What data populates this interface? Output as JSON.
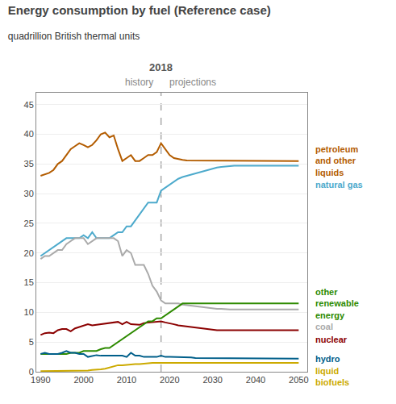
{
  "chart_data": {
    "type": "line",
    "title": "Energy consumption by fuel (Reference case)",
    "subtitle": "quadrillion British thermal units",
    "x": [
      1990,
      1991,
      1992,
      1993,
      1994,
      1995,
      1996,
      1997,
      1998,
      1999,
      2000,
      2001,
      2002,
      2003,
      2004,
      2005,
      2006,
      2007,
      2008,
      2009,
      2010,
      2011,
      2012,
      2013,
      2014,
      2015,
      2016,
      2017,
      2018,
      2019,
      2020,
      2021,
      2022,
      2023,
      2024,
      2025,
      2026,
      2027,
      2028,
      2029,
      2030,
      2031,
      2032,
      2033,
      2034,
      2035,
      2036,
      2037,
      2038,
      2039,
      2040,
      2041,
      2042,
      2043,
      2044,
      2045,
      2046,
      2047,
      2048,
      2049,
      2050
    ],
    "series": [
      {
        "name": "petroleum\nand other\nliquids",
        "color": "#b35c00",
        "values": [
          33.0,
          33.2,
          33.5,
          34.0,
          35.0,
          35.5,
          36.5,
          37.5,
          38.0,
          38.5,
          38.2,
          37.8,
          38.2,
          39.0,
          40.0,
          40.3,
          39.5,
          39.8,
          37.5,
          35.5,
          36.0,
          36.5,
          35.5,
          35.5,
          36.0,
          36.5,
          36.5,
          37.0,
          38.5,
          37.5,
          36.5,
          36.0,
          35.8,
          35.7,
          35.6,
          35.6,
          35.6,
          35.6,
          35.6,
          35.6,
          35.6,
          35.6,
          35.6,
          35.6,
          35.5,
          35.5,
          35.5,
          35.5,
          35.5,
          35.5,
          35.5,
          35.5,
          35.5,
          35.5,
          35.5,
          35.5,
          35.5,
          35.5,
          35.5,
          35.5,
          35.5
        ]
      },
      {
        "name": "natural gas",
        "color": "#4daacc",
        "values": [
          19.5,
          20.0,
          20.5,
          21.0,
          21.5,
          22.0,
          22.5,
          22.5,
          22.5,
          22.5,
          23.0,
          22.5,
          23.5,
          22.5,
          22.5,
          22.5,
          22.5,
          23.0,
          23.5,
          23.5,
          24.5,
          24.5,
          25.5,
          26.5,
          27.5,
          28.5,
          28.5,
          28.5,
          30.5,
          31.0,
          31.5,
          32.0,
          32.5,
          32.8,
          33.0,
          33.3,
          33.5,
          33.7,
          33.9,
          34.1,
          34.3,
          34.4,
          34.5,
          34.6,
          34.7,
          34.7,
          34.7,
          34.7,
          34.7,
          34.7,
          34.7,
          34.7,
          34.7,
          34.7,
          34.7,
          34.7,
          34.7,
          34.7,
          34.7,
          34.7,
          34.7
        ]
      },
      {
        "name": "coal",
        "color": "#aaaaaa",
        "values": [
          19.0,
          19.5,
          19.5,
          20.0,
          20.5,
          20.5,
          21.5,
          22.0,
          22.5,
          22.5,
          22.5,
          21.5,
          22.0,
          22.5,
          22.5,
          22.5,
          22.5,
          22.5,
          22.0,
          19.5,
          20.5,
          20.0,
          18.0,
          18.0,
          18.0,
          16.5,
          14.5,
          13.5,
          12.0,
          11.5,
          11.5,
          11.5,
          11.5,
          11.3,
          11.2,
          11.1,
          11.0,
          10.9,
          10.8,
          10.7,
          10.7,
          10.6,
          10.6,
          10.5,
          10.5,
          10.5,
          10.5,
          10.5,
          10.5,
          10.5,
          10.5,
          10.5,
          10.5,
          10.5,
          10.5,
          10.5,
          10.5,
          10.5,
          10.5,
          10.5,
          10.5
        ]
      },
      {
        "name": "nuclear",
        "color": "#8b0000",
        "values": [
          6.2,
          6.5,
          6.6,
          6.5,
          7.0,
          7.2,
          7.2,
          6.8,
          7.3,
          7.5,
          7.8,
          8.0,
          7.8,
          7.9,
          8.0,
          8.2,
          8.2,
          8.4,
          8.4,
          8.0,
          8.4,
          8.0,
          8.0,
          7.9,
          8.2,
          8.3,
          8.4,
          8.5,
          8.5,
          8.3,
          8.2,
          8.0,
          7.8,
          7.7,
          7.6,
          7.5,
          7.4,
          7.3,
          7.2,
          7.1,
          7.0,
          7.0,
          7.0,
          7.0,
          7.0,
          7.0,
          7.0,
          7.0,
          7.0,
          7.0,
          7.0,
          7.0,
          7.0,
          7.0,
          7.0,
          7.0,
          7.0,
          7.0,
          7.0,
          7.0,
          7.0
        ]
      },
      {
        "name": "other\nrenewable\nenergy",
        "color": "#2d8a00",
        "values": [
          3.0,
          3.0,
          3.0,
          3.0,
          3.0,
          3.0,
          3.0,
          3.2,
          3.2,
          3.2,
          3.5,
          3.5,
          3.5,
          3.5,
          3.8,
          4.0,
          4.0,
          4.5,
          5.0,
          5.5,
          6.0,
          6.5,
          7.0,
          7.5,
          8.0,
          8.5,
          8.5,
          9.0,
          9.0,
          9.5,
          10.0,
          10.5,
          11.0,
          11.5,
          11.5,
          11.5,
          11.5,
          11.5,
          11.5,
          11.5,
          11.5,
          11.5,
          11.5,
          11.5,
          11.5,
          11.5,
          11.5,
          11.5,
          11.5,
          11.5,
          11.5,
          11.5,
          11.5,
          11.5,
          11.5,
          11.5,
          11.5,
          11.5,
          11.5,
          11.5,
          11.5
        ]
      },
      {
        "name": "hydro",
        "color": "#005f8a",
        "values": [
          3.0,
          3.2,
          3.0,
          3.0,
          3.0,
          3.2,
          3.5,
          3.2,
          3.2,
          3.0,
          3.0,
          2.5,
          2.7,
          2.8,
          2.7,
          2.7,
          2.7,
          2.7,
          2.7,
          2.7,
          2.5,
          3.2,
          2.7,
          2.7,
          2.5,
          2.5,
          2.5,
          2.5,
          2.7,
          2.5,
          2.5,
          2.5,
          2.5,
          2.4,
          2.4,
          2.4,
          2.3,
          2.3,
          2.3,
          2.3,
          2.2,
          2.2,
          2.2,
          2.2,
          2.2,
          2.2,
          2.2,
          2.2,
          2.2,
          2.2,
          2.2,
          2.2,
          2.2,
          2.2,
          2.2,
          2.2,
          2.2,
          2.2,
          2.2,
          2.2,
          2.2
        ]
      },
      {
        "name": "liquid\nbiofuels",
        "color": "#ccaa00",
        "values": [
          0.1,
          0.1,
          0.1,
          0.1,
          0.2,
          0.2,
          0.2,
          0.2,
          0.2,
          0.2,
          0.2,
          0.2,
          0.3,
          0.3,
          0.4,
          0.5,
          0.7,
          0.9,
          1.1,
          1.1,
          1.2,
          1.3,
          1.3,
          1.3,
          1.4,
          1.5,
          1.5,
          1.5,
          1.5,
          1.5,
          1.5,
          1.5,
          1.5,
          1.5,
          1.5,
          1.5,
          1.5,
          1.5,
          1.5,
          1.5,
          1.5,
          1.5,
          1.5,
          1.5,
          1.5,
          1.5,
          1.5,
          1.5,
          1.5,
          1.5,
          1.5,
          1.5,
          1.5,
          1.5,
          1.5,
          1.5,
          1.5,
          1.5,
          1.5,
          1.5,
          1.5
        ]
      }
    ],
    "vline": {
      "x": 2018,
      "label": "2018"
    },
    "annotations": [
      "history",
      "projections"
    ],
    "xlim": [
      1989,
      2052
    ],
    "ylim": [
      0,
      47
    ],
    "xticks": [
      1990,
      2000,
      2010,
      2020,
      2030,
      2040,
      2050
    ],
    "yticks": [
      0,
      5,
      10,
      15,
      20,
      25,
      30,
      35,
      40,
      45
    ],
    "grid": "y"
  }
}
